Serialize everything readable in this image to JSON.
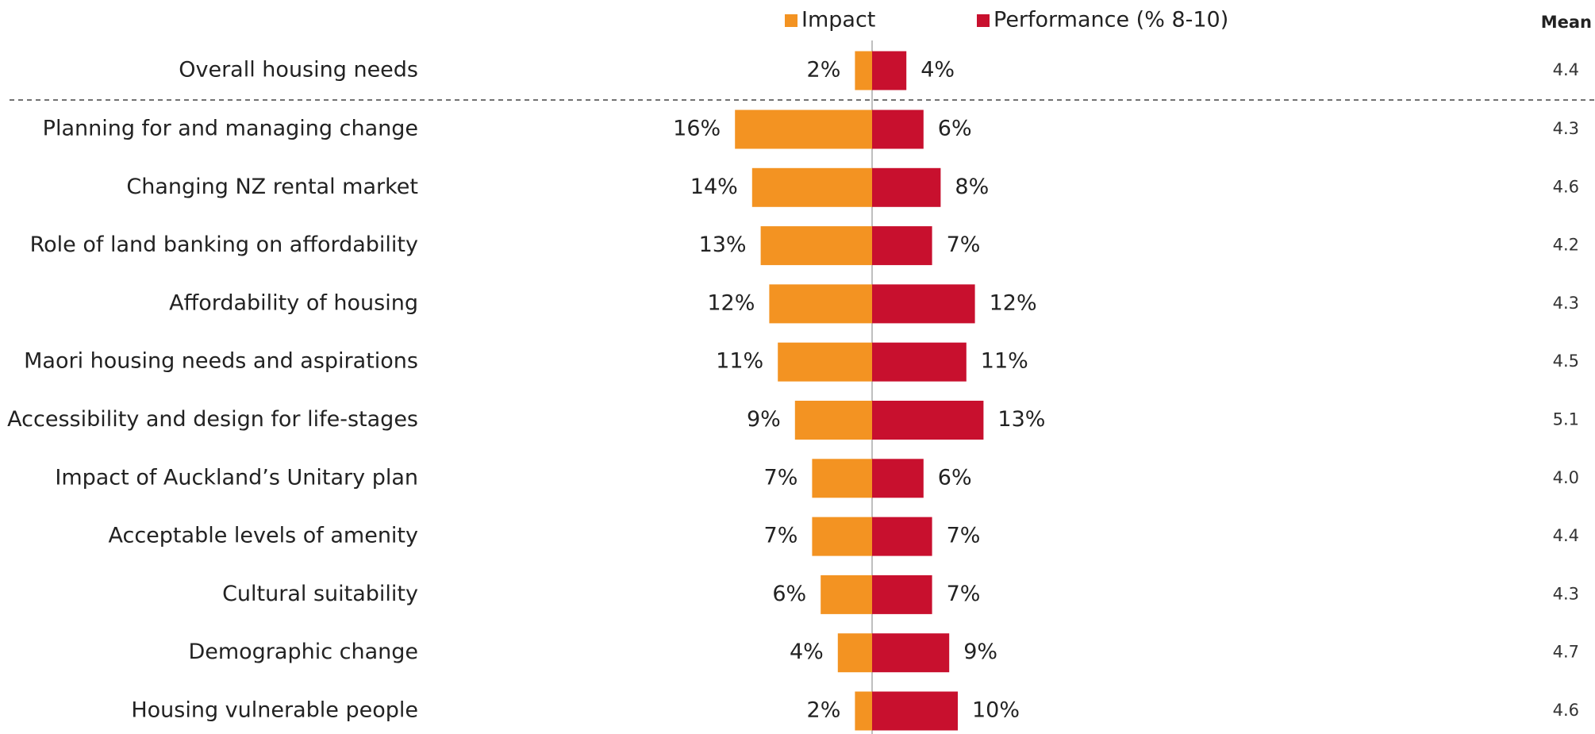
{
  "chart_data": {
    "type": "diverging-bar",
    "categories": [
      "Overall housing needs",
      "Planning for and managing change",
      "Changing NZ rental market",
      "Role of land banking on affordability",
      "Affordability of housing",
      "Maori housing needs and aspirations",
      "Accessibility and design for life-stages",
      "Impact of Auckland’s Unitary plan",
      "Acceptable levels of amenity",
      "Cultural suitability",
      "Demographic change",
      "Housing vulnerable people"
    ],
    "series": [
      {
        "name": "Impact",
        "color": "#f39322",
        "direction": "left",
        "values": [
          2,
          16,
          14,
          13,
          12,
          11,
          9,
          7,
          7,
          6,
          4,
          2
        ],
        "value_labels": [
          "2%",
          "16%",
          "14%",
          "13%",
          "12%",
          "11%",
          "9%",
          "7%",
          "7%",
          "6%",
          "4%",
          "2%"
        ]
      },
      {
        "name": "Performance (% 8-10)",
        "color": "#c8102e",
        "direction": "right",
        "values": [
          4,
          6,
          8,
          7,
          12,
          11,
          13,
          6,
          7,
          7,
          9,
          10
        ],
        "value_labels": [
          "4%",
          "6%",
          "8%",
          "7%",
          "12%",
          "11%",
          "13%",
          "6%",
          "7%",
          "7%",
          "9%",
          "10%"
        ]
      }
    ],
    "mean_column": {
      "title": "Mean",
      "labels": [
        "4.4",
        "4.3",
        "4.6",
        "4.2",
        "4.3",
        "4.5",
        "5.1",
        "4.0",
        "4.4",
        "4.3",
        "4.7",
        "4.6"
      ]
    }
  }
}
